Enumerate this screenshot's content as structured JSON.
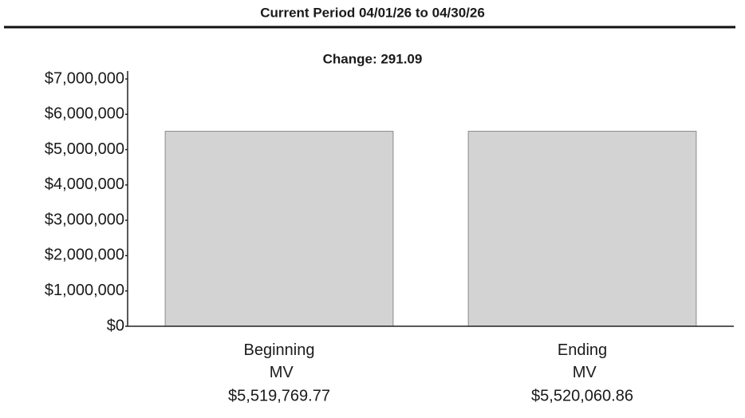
{
  "chart_data": {
    "type": "bar",
    "title": "Current Period 04/01/26 to 04/30/26",
    "subtitle": "Change: 291.09",
    "categories": [
      "Beginning MV",
      "Ending MV"
    ],
    "values": [
      5519769.77,
      5520060.86
    ],
    "value_labels": [
      "$5,519,769.77",
      "$5,520,060.86"
    ],
    "color": "#d3d3d3",
    "ylim": [
      0,
      7000000
    ],
    "yticks": [
      {
        "value": 0,
        "label": "$0"
      },
      {
        "value": 1000000,
        "label": "$1,000,000"
      },
      {
        "value": 2000000,
        "label": "$2,000,000"
      },
      {
        "value": 3000000,
        "label": "$3,000,000"
      },
      {
        "value": 4000000,
        "label": "$4,000,000"
      },
      {
        "value": 5000000,
        "label": "$5,000,000"
      },
      {
        "value": 6000000,
        "label": "$6,000,000"
      },
      {
        "value": 7000000,
        "label": "$7,000,000"
      }
    ],
    "grid": false
  }
}
